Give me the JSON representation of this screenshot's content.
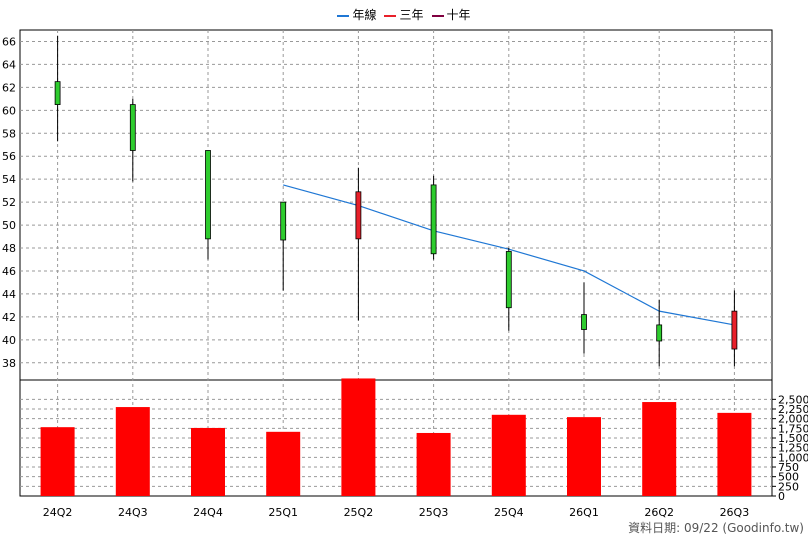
{
  "legend": [
    {
      "label": "年線",
      "color": "#1f77d4"
    },
    {
      "label": "三年",
      "color": "#e8202a"
    },
    {
      "label": "十年",
      "color": "#800040"
    }
  ],
  "footnote": "資料日期: 09/22 (Goodinfo.tw)",
  "colors": {
    "up": "#e8202a",
    "down": "#2ecc2e",
    "volume": "#ff0000",
    "line": "#1f77d4"
  },
  "chart_data": {
    "type": "candlestick+bar",
    "categories": [
      "24Q2",
      "24Q3",
      "24Q4",
      "25Q1",
      "25Q2",
      "25Q3",
      "25Q4",
      "26Q1",
      "26Q2",
      "26Q3"
    ],
    "price_ylim": [
      36.5,
      67
    ],
    "price_ticks": [
      38,
      40,
      42,
      44,
      46,
      48,
      50,
      52,
      54,
      56,
      58,
      60,
      62,
      64,
      66
    ],
    "candles": [
      {
        "open": 62.5,
        "high": 66.5,
        "low": 57.3,
        "close": 60.5,
        "color": "down"
      },
      {
        "open": 60.5,
        "high": 61.0,
        "low": 53.8,
        "close": 56.5,
        "color": "down"
      },
      {
        "open": 56.5,
        "high": 56.5,
        "low": 47.0,
        "close": 48.8,
        "color": "down"
      },
      {
        "open": 52.0,
        "high": 52.0,
        "low": 44.3,
        "close": 48.7,
        "color": "down"
      },
      {
        "open": 48.8,
        "high": 55.0,
        "low": 41.7,
        "close": 52.9,
        "color": "up"
      },
      {
        "open": 53.5,
        "high": 54.3,
        "low": 47.0,
        "close": 47.5,
        "color": "down"
      },
      {
        "open": 47.7,
        "high": 48.0,
        "low": 40.8,
        "close": 42.8,
        "color": "down"
      },
      {
        "open": 42.2,
        "high": 45.0,
        "low": 38.8,
        "close": 40.9,
        "color": "down"
      },
      {
        "open": 41.3,
        "high": 43.5,
        "low": 37.7,
        "close": 39.9,
        "color": "down"
      },
      {
        "open": 39.2,
        "high": 44.3,
        "low": 37.7,
        "close": 42.5,
        "color": "up"
      }
    ],
    "annual_line": {
      "name": "年線",
      "x_index": [
        3,
        4,
        5,
        6,
        7,
        8,
        9
      ],
      "values": [
        53.5,
        51.7,
        49.5,
        47.9,
        46.0,
        42.5,
        41.3
      ]
    },
    "volume": [
      1780,
      2300,
      1760,
      1660,
      3040,
      1630,
      2100,
      2040,
      2430,
      2150
    ],
    "volume_ylim": [
      0,
      3000
    ],
    "volume_ticks": [
      "0",
      "250",
      "500",
      "750",
      "1,000",
      "1,250",
      "1,500",
      "1,750",
      "2,000",
      "2,250",
      "2,500"
    ],
    "volume_tick_values": [
      0,
      250,
      500,
      750,
      1000,
      1250,
      1500,
      1750,
      2000,
      2250,
      2500
    ]
  }
}
